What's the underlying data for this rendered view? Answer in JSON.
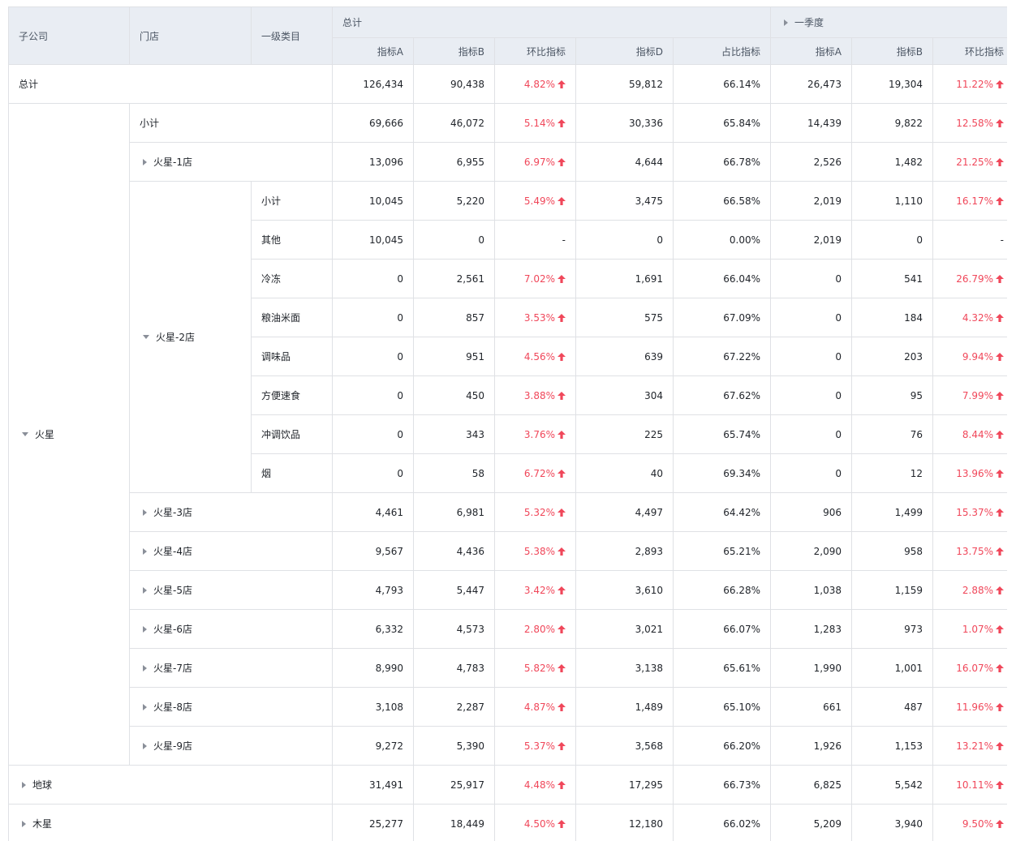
{
  "header": {
    "company": "子公司",
    "store": "门店",
    "category": "一级类目",
    "total_group": "总计",
    "q1_group": "一季度",
    "metrics": [
      "指标A",
      "指标B",
      "环比指标",
      "指标D",
      "占比指标",
      "指标A",
      "指标B",
      "环比指标"
    ]
  },
  "colors": {
    "positive": "#f0475a",
    "header_bg": "#e9edf3",
    "border": "#dfe1e5"
  },
  "rows": [
    {
      "values": [
        "126,434",
        "90,438",
        "4.82%",
        "59,812",
        "66.14%",
        "26,473",
        "19,304",
        "11.22%"
      ]
    },
    {
      "values": [
        "69,666",
        "46,072",
        "5.14%",
        "30,336",
        "65.84%",
        "14,439",
        "9,822",
        "12.58%"
      ]
    },
    {
      "values": [
        "13,096",
        "6,955",
        "6.97%",
        "4,644",
        "66.78%",
        "2,526",
        "1,482",
        "21.25%"
      ]
    },
    {
      "values": [
        "10,045",
        "5,220",
        "5.49%",
        "3,475",
        "66.58%",
        "2,019",
        "1,110",
        "16.17%"
      ]
    },
    {
      "values": [
        "10,045",
        "0",
        "-",
        "0",
        "0.00%",
        "2,019",
        "0",
        "-"
      ]
    },
    {
      "values": [
        "0",
        "2,561",
        "7.02%",
        "1,691",
        "66.04%",
        "0",
        "541",
        "26.79%"
      ]
    },
    {
      "values": [
        "0",
        "857",
        "3.53%",
        "575",
        "67.09%",
        "0",
        "184",
        "4.32%"
      ]
    },
    {
      "values": [
        "0",
        "951",
        "4.56%",
        "639",
        "67.22%",
        "0",
        "203",
        "9.94%"
      ]
    },
    {
      "values": [
        "0",
        "450",
        "3.88%",
        "304",
        "67.62%",
        "0",
        "95",
        "7.99%"
      ]
    },
    {
      "values": [
        "0",
        "343",
        "3.76%",
        "225",
        "65.74%",
        "0",
        "76",
        "8.44%"
      ]
    },
    {
      "values": [
        "0",
        "58",
        "6.72%",
        "40",
        "69.34%",
        "0",
        "12",
        "13.96%"
      ]
    },
    {
      "values": [
        "4,461",
        "6,981",
        "5.32%",
        "4,497",
        "64.42%",
        "906",
        "1,499",
        "15.37%"
      ]
    },
    {
      "values": [
        "9,567",
        "4,436",
        "5.38%",
        "2,893",
        "65.21%",
        "2,090",
        "958",
        "13.75%"
      ]
    },
    {
      "values": [
        "4,793",
        "5,447",
        "3.42%",
        "3,610",
        "66.28%",
        "1,038",
        "1,159",
        "2.88%"
      ]
    },
    {
      "values": [
        "6,332",
        "4,573",
        "2.80%",
        "3,021",
        "66.07%",
        "1,283",
        "973",
        "1.07%"
      ]
    },
    {
      "values": [
        "8,990",
        "4,783",
        "5.82%",
        "3,138",
        "65.61%",
        "1,990",
        "1,001",
        "16.07%"
      ]
    },
    {
      "values": [
        "3,108",
        "2,287",
        "4.87%",
        "1,489",
        "65.10%",
        "661",
        "487",
        "11.96%"
      ]
    },
    {
      "values": [
        "9,272",
        "5,390",
        "5.37%",
        "3,568",
        "66.20%",
        "1,926",
        "1,153",
        "13.21%"
      ]
    },
    {
      "values": [
        "31,491",
        "25,917",
        "4.48%",
        "17,295",
        "66.73%",
        "6,825",
        "5,542",
        "10.11%"
      ]
    },
    {
      "values": [
        "25,277",
        "18,449",
        "4.50%",
        "12,180",
        "66.02%",
        "5,209",
        "3,940",
        "9.50%"
      ]
    }
  ],
  "row_headers": [
    {
      "text": "总计",
      "col": 0,
      "span_cols": 3,
      "row": 0,
      "span_rows": 1,
      "toggle": "none"
    },
    {
      "text": "火星",
      "col": 0,
      "span_cols": 1,
      "row": 1,
      "span_rows": 17,
      "toggle": "down"
    },
    {
      "text": "小计",
      "col": 1,
      "span_cols": 2,
      "row": 1,
      "span_rows": 1,
      "toggle": "none"
    },
    {
      "text": "火星-1店",
      "col": 1,
      "span_cols": 2,
      "row": 2,
      "span_rows": 1,
      "toggle": "right"
    },
    {
      "text": "火星-2店",
      "col": 1,
      "span_cols": 1,
      "row": 3,
      "span_rows": 8,
      "toggle": "down"
    },
    {
      "text": "小计",
      "col": 2,
      "span_cols": 1,
      "row": 3,
      "span_rows": 1,
      "toggle": "none"
    },
    {
      "text": "其他",
      "col": 2,
      "span_cols": 1,
      "row": 4,
      "span_rows": 1,
      "toggle": "none"
    },
    {
      "text": "冷冻",
      "col": 2,
      "span_cols": 1,
      "row": 5,
      "span_rows": 1,
      "toggle": "none"
    },
    {
      "text": "粮油米面",
      "col": 2,
      "span_cols": 1,
      "row": 6,
      "span_rows": 1,
      "toggle": "none"
    },
    {
      "text": "调味品",
      "col": 2,
      "span_cols": 1,
      "row": 7,
      "span_rows": 1,
      "toggle": "none"
    },
    {
      "text": "方便速食",
      "col": 2,
      "span_cols": 1,
      "row": 8,
      "span_rows": 1,
      "toggle": "none"
    },
    {
      "text": "冲调饮品",
      "col": 2,
      "span_cols": 1,
      "row": 9,
      "span_rows": 1,
      "toggle": "none"
    },
    {
      "text": "烟",
      "col": 2,
      "span_cols": 1,
      "row": 10,
      "span_rows": 1,
      "toggle": "none"
    },
    {
      "text": "火星-3店",
      "col": 1,
      "span_cols": 2,
      "row": 11,
      "span_rows": 1,
      "toggle": "right"
    },
    {
      "text": "火星-4店",
      "col": 1,
      "span_cols": 2,
      "row": 12,
      "span_rows": 1,
      "toggle": "right"
    },
    {
      "text": "火星-5店",
      "col": 1,
      "span_cols": 2,
      "row": 13,
      "span_rows": 1,
      "toggle": "right"
    },
    {
      "text": "火星-6店",
      "col": 1,
      "span_cols": 2,
      "row": 14,
      "span_rows": 1,
      "toggle": "right"
    },
    {
      "text": "火星-7店",
      "col": 1,
      "span_cols": 2,
      "row": 15,
      "span_rows": 1,
      "toggle": "right"
    },
    {
      "text": "火星-8店",
      "col": 1,
      "span_cols": 2,
      "row": 16,
      "span_rows": 1,
      "toggle": "right"
    },
    {
      "text": "火星-9店",
      "col": 1,
      "span_cols": 2,
      "row": 17,
      "span_rows": 1,
      "toggle": "right"
    },
    {
      "text": "地球",
      "col": 0,
      "span_cols": 3,
      "row": 18,
      "span_rows": 1,
      "toggle": "right"
    },
    {
      "text": "木星",
      "col": 0,
      "span_cols": 3,
      "row": 19,
      "span_rows": 1,
      "toggle": "right"
    }
  ]
}
